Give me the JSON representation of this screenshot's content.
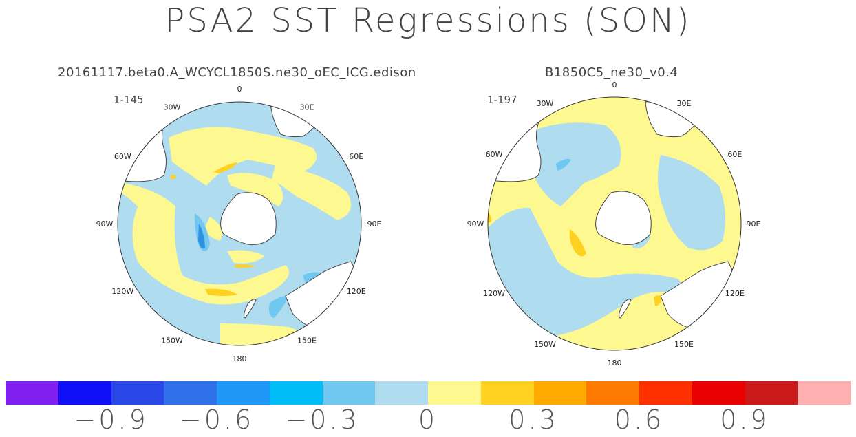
{
  "figure": {
    "title": "PSA2 SST Regressions (SON)"
  },
  "panels": [
    {
      "subtitle": "20161117.beta0.A_WCYCL1850S.ne30_oEC_ICG.edison",
      "years": "1-145",
      "lon_labels": [
        "0",
        "30E",
        "60E",
        "90E",
        "120E",
        "150E",
        "180",
        "150W",
        "120W",
        "90W",
        "60W",
        "30W"
      ]
    },
    {
      "subtitle": "B1850C5_ne30_v0.4",
      "years": "1-197",
      "lon_labels": [
        "0",
        "30E",
        "60E",
        "90E",
        "120E",
        "150E",
        "180",
        "150W",
        "120W",
        "90W",
        "60W",
        "30W"
      ]
    }
  ],
  "colorbar": {
    "colors": [
      "#8020f0",
      "#1010f8",
      "#2a48e8",
      "#3070e8",
      "#2098f8",
      "#00bef8",
      "#70c8f0",
      "#b0dcf0",
      "#fef890",
      "#fed020",
      "#feaa00",
      "#fe7a00",
      "#fe3000",
      "#ea0000",
      "#cc1a1a",
      "#feb0b0"
    ],
    "labels": [
      "−0.9",
      "−0.6",
      "−0.3",
      "0",
      "0.3",
      "0.6",
      "0.9"
    ]
  },
  "palette": {
    "neg_light": "#b0dcf0",
    "pos_light": "#fef890",
    "neg_mid": "#70c8f0",
    "neg_strong": "#3090e0",
    "pos_mid": "#fed020",
    "pos_strong": "#feaa00",
    "land": "#ffffff"
  }
}
